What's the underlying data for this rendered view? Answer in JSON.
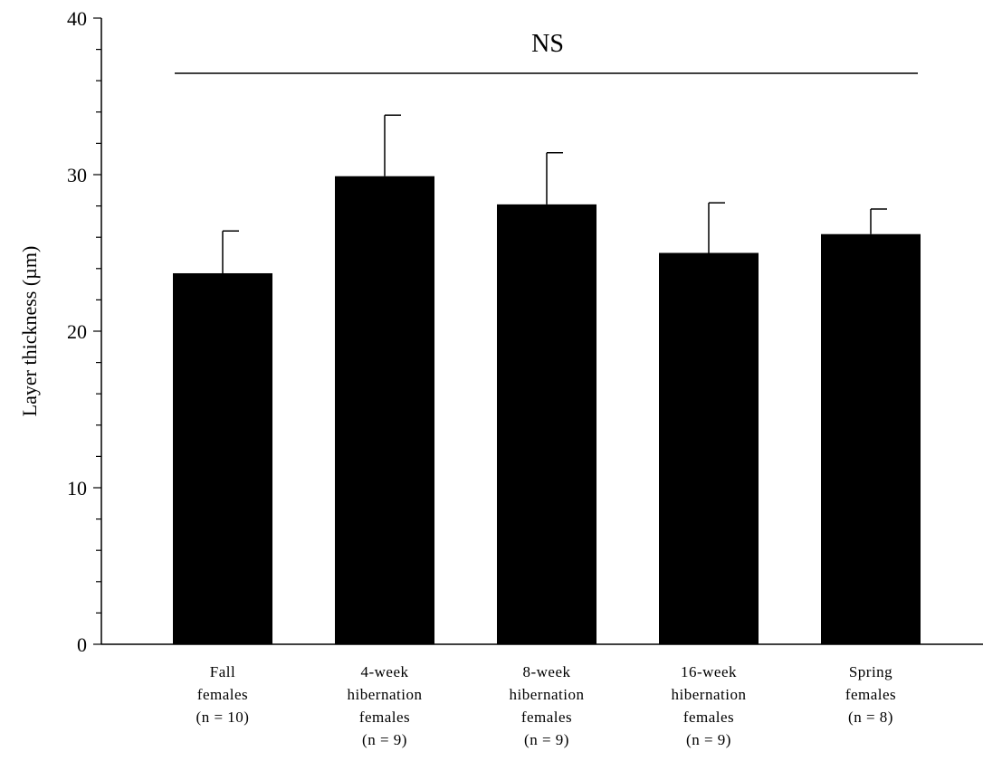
{
  "chart_data": {
    "type": "bar",
    "categories": [
      [
        "Fall",
        "females",
        "(n = 10)"
      ],
      [
        "4-week",
        "hibernation",
        "females",
        "(n = 9)"
      ],
      [
        "8-week",
        "hibernation",
        "females",
        "(n = 9)"
      ],
      [
        "16-week",
        "hibernation",
        "females",
        "(n = 9)"
      ],
      [
        "Spring",
        "females",
        "(n = 8)"
      ]
    ],
    "values": [
      23.7,
      29.9,
      28.1,
      25.0,
      26.2
    ],
    "errors": [
      2.7,
      3.9,
      3.3,
      3.2,
      1.6
    ],
    "ylabel": "Layer thickness (µm)",
    "ylim": [
      0,
      40
    ],
    "yticks": [
      0,
      10,
      20,
      30,
      40
    ],
    "minor_step": 2,
    "annotation": "NS",
    "bar_color": "#000000",
    "grid": false,
    "legend": "none"
  }
}
